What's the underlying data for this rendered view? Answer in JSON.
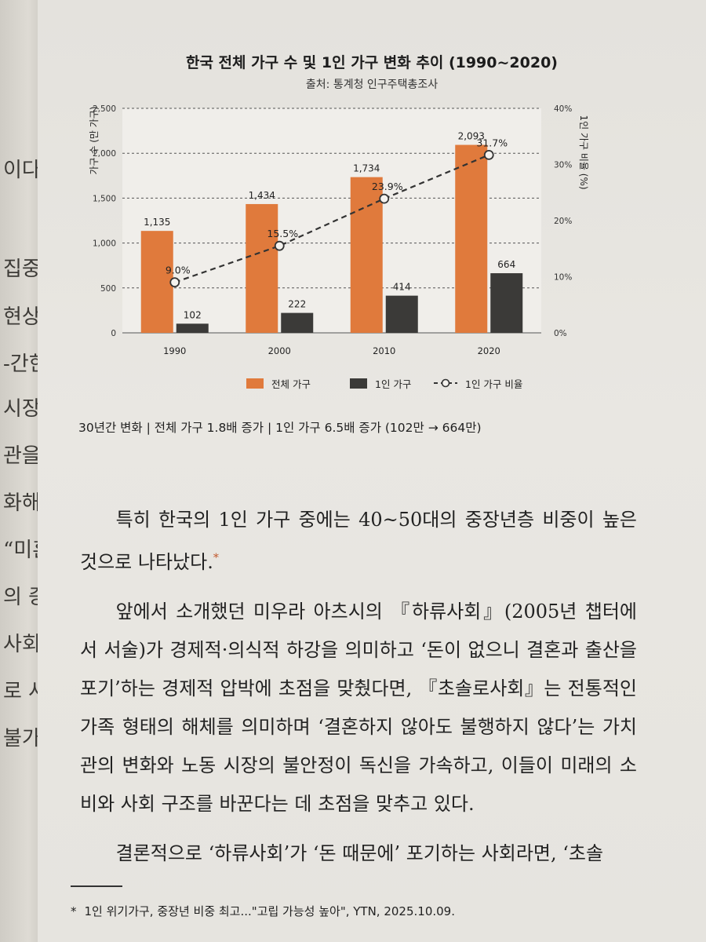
{
  "chart_data": {
    "type": "bar",
    "title": "한국 전체 가구 수 및 1인 가구 변화 추이 (1990~2020)",
    "subtitle": "출처: 통계청 인구주택총조사",
    "categories": [
      "1990",
      "2000",
      "2010",
      "2020"
    ],
    "series": [
      {
        "name": "전체 가구",
        "type": "bar",
        "axis": "left",
        "color": "#e07a3c",
        "values": [
          1135,
          1434,
          1734,
          2093
        ],
        "labels": [
          "1,135",
          "1,434",
          "1,734",
          "2,093"
        ]
      },
      {
        "name": "1인 가구",
        "type": "bar",
        "axis": "left",
        "color": "#3b3a38",
        "values": [
          102,
          222,
          414,
          664
        ],
        "labels": [
          "102",
          "222",
          "414",
          "664"
        ]
      },
      {
        "name": "1인 가구 비율",
        "type": "line",
        "axis": "right",
        "color": "#333333",
        "values": [
          9.0,
          15.5,
          23.9,
          31.7
        ],
        "labels": [
          "9.0%",
          "15.5%",
          "23.9%",
          "31.7%"
        ]
      }
    ],
    "ylabel": "가구 수 (만 가구)",
    "y2label": "1인 가구 비율 (%)",
    "ylim": [
      0,
      2500
    ],
    "y2lim": [
      0,
      40
    ],
    "yticks": [
      "0",
      "500",
      "1,000",
      "1,500",
      "2,000",
      "2,500"
    ],
    "y2ticks": [
      "0%",
      "10%",
      "20%",
      "30%",
      "40%"
    ],
    "grid": true,
    "legend": "bottom"
  },
  "summary": "30년간 변화 | 전체 가구 1.8배 증가 | 1인 가구 6.5배 증가 (102만 → 664만)",
  "body": {
    "p1": "특히 한국의 1인 가구 중에는 40~50대의 중장년층 비중이 높은 것으로 나타났다.",
    "p1_mark": "*",
    "p2": "앞에서 소개했던 미우라 아츠시의 『하류사회』(2005년 챕터에서 서술)가 경제적·의식적 하강을 의미하고 ‘돈이 없으니 결혼과 출산을 포기’하는 경제적 압박에 초점을 맞췄다면, 『초솔로사회』는 전통적인 가족 형태의 해체를 의미하며 ‘결혼하지 않아도 불행하지 않다’는 가치관의 변화와 노동 시장의 불안정이 독신을 가속하고, 이들이 미래의 소비와 사회 구조를 바꾼다는 데 초점을 맞추고 있다.",
    "p3": "결론적으로 ‘하류사회’가 ‘돈 때문에’ 포기하는 사회라면, ‘초솔"
  },
  "footnote": {
    "mark": "*",
    "text": "1인 위기가구, 중장년 비중 최고...\"고립 가능성 높아\", YTN, 2025.10.09."
  },
  "left_page": {
    "fragments": [
      "이다.",
      "집중했다",
      "현상을",
      "-간한 ‘",
      "시장을 두",
      "관을 분석",
      "화해가",
      "“미혼",
      "의 증가",
      "사회화의",
      "로 사회",
      "불가피할"
    ]
  }
}
